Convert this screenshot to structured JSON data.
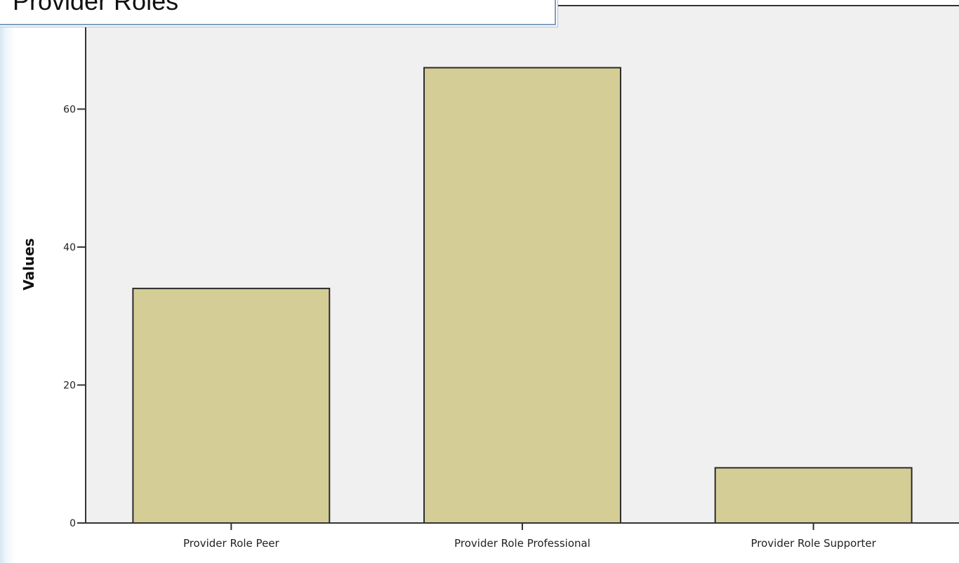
{
  "chart_data": {
    "type": "bar",
    "title": "Provider Roles",
    "xlabel": "",
    "ylabel": "Values",
    "categories": [
      "Provider Role Peer",
      "Provider Role Professional",
      "Provider Role Supporter"
    ],
    "values": [
      34,
      66,
      8
    ],
    "ylim": [
      0,
      75
    ],
    "yticks": [
      "0",
      "20",
      "40",
      "60"
    ],
    "grid": false,
    "legend": "none",
    "colors": {
      "bar_fill": "#d4ce96",
      "bar_stroke": "#2b2b2b",
      "plot_background": "#f0f0f0",
      "axis": "#333333"
    }
  }
}
